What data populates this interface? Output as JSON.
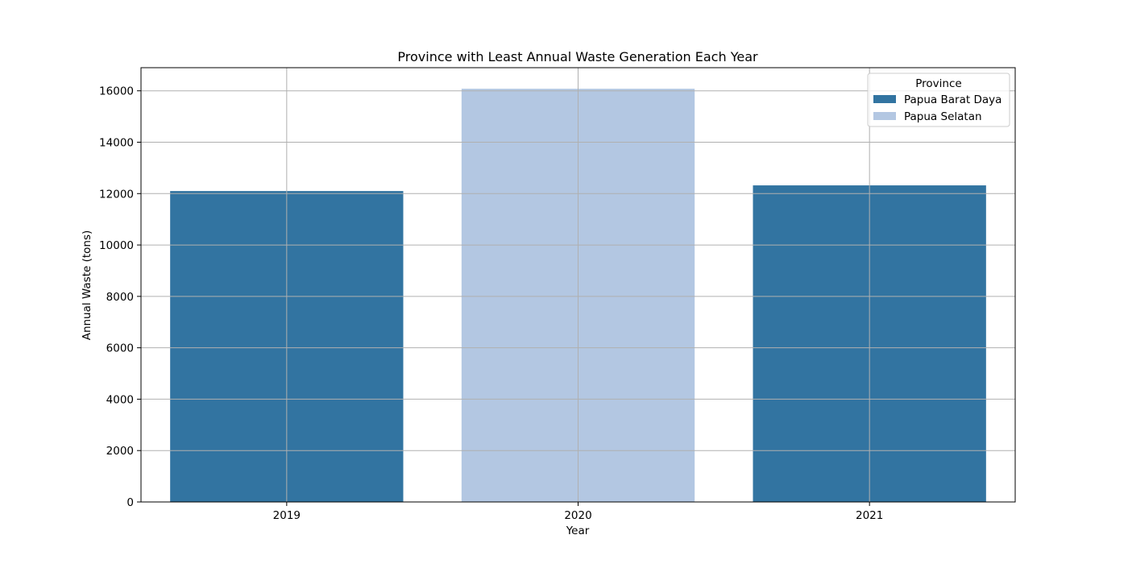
{
  "chart_data": {
    "type": "bar",
    "title": "Province with Least Annual Waste Generation Each Year",
    "xlabel": "Year",
    "ylabel": "Annual Waste (tons)",
    "categories": [
      "2019",
      "2020",
      "2021"
    ],
    "values": [
      12100,
      16080,
      12320
    ],
    "bar_series": [
      "Papua Barat Daya",
      "Papua Selatan",
      "Papua Barat Daya"
    ],
    "ylim": [
      0,
      16900
    ],
    "yticks": [
      0,
      2000,
      4000,
      6000,
      8000,
      10000,
      12000,
      14000,
      16000
    ],
    "grid": true,
    "legend": {
      "title": "Province",
      "placement": "top-right",
      "entries": [
        {
          "name": "Papua Barat Daya",
          "color": "#3274a1"
        },
        {
          "name": "Papua Selatan",
          "color": "#b3c7e2"
        }
      ]
    },
    "colors": {
      "Papua Barat Daya": "#3274a1",
      "Papua Selatan": "#b3c7e2"
    }
  }
}
